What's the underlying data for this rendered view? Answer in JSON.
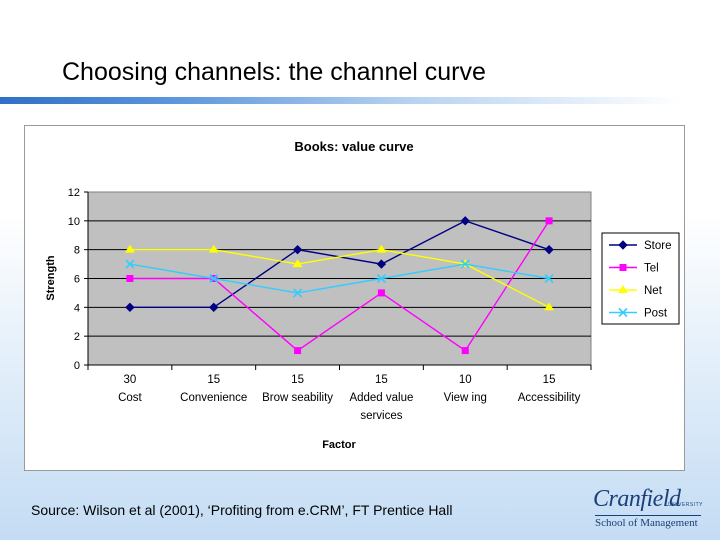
{
  "slide": {
    "title": "Choosing channels:  the channel curve",
    "source": "Source:  Wilson et al (2001), ‘Profiting from e.CRM’, FT Prentice Hall"
  },
  "logo": {
    "name": "Cranfield",
    "university": "UNIVERSITY",
    "subtitle": "School of Management"
  },
  "colors": {
    "accent": "#2f6fc6",
    "plot_bg": "#c0c0c0",
    "Store": "#000080",
    "Tel": "#ff00ff",
    "Net": "#ffff00",
    "Post": "#33ccff"
  },
  "chart_data": {
    "type": "line",
    "title": "Books: value curve",
    "xlabel": "Factor",
    "ylabel": "Strength",
    "ylim": [
      0,
      12
    ],
    "yticks": [
      0,
      2,
      4,
      6,
      8,
      10,
      12
    ],
    "grid": true,
    "legend": "right",
    "categories": [
      [
        "30",
        "Cost"
      ],
      [
        "15",
        "Convenience"
      ],
      [
        "15",
        "Brow seability"
      ],
      [
        "15",
        "Added value",
        "services"
      ],
      [
        "10",
        "View ing"
      ],
      [
        "15",
        "Accessibility"
      ]
    ],
    "series": [
      {
        "name": "Store",
        "marker": "diamond",
        "values": [
          4,
          4,
          8,
          7,
          10,
          8
        ]
      },
      {
        "name": "Tel",
        "marker": "square",
        "values": [
          6,
          6,
          1,
          5,
          1,
          10
        ]
      },
      {
        "name": "Net",
        "marker": "triangle",
        "values": [
          8,
          8,
          7,
          8,
          7,
          4
        ]
      },
      {
        "name": "Post",
        "marker": "x",
        "values": [
          7,
          6,
          5,
          6,
          7,
          6
        ]
      }
    ]
  }
}
